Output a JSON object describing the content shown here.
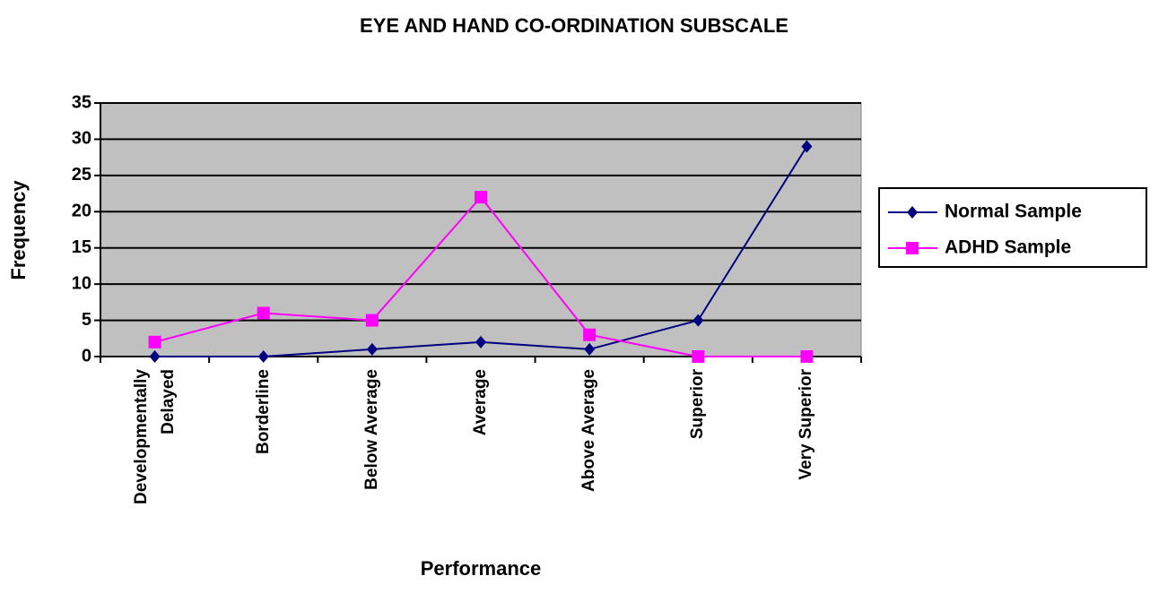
{
  "chart_data": {
    "type": "line",
    "title": "EYE AND HAND CO-ORDINATION SUBSCALE",
    "x_label": "Performance",
    "y_label": "Frequency",
    "categories": [
      "Developmentally Delayed",
      "Borderline",
      "Below Average",
      "Average",
      "Above Average",
      "Superior",
      "Very Superior"
    ],
    "series": [
      {
        "name": "Normal Sample",
        "color": "#000080",
        "marker": "diamond",
        "values": [
          0,
          0,
          1,
          2,
          1,
          5,
          29
        ]
      },
      {
        "name": "ADHD Sample",
        "color": "#ff00ff",
        "marker": "square",
        "values": [
          2,
          6,
          5,
          22,
          3,
          0,
          0
        ]
      }
    ],
    "ylim": [
      0,
      35
    ],
    "yticks": [
      0,
      5,
      10,
      15,
      20,
      25,
      30,
      35
    ],
    "grid": true,
    "legend": "right"
  }
}
